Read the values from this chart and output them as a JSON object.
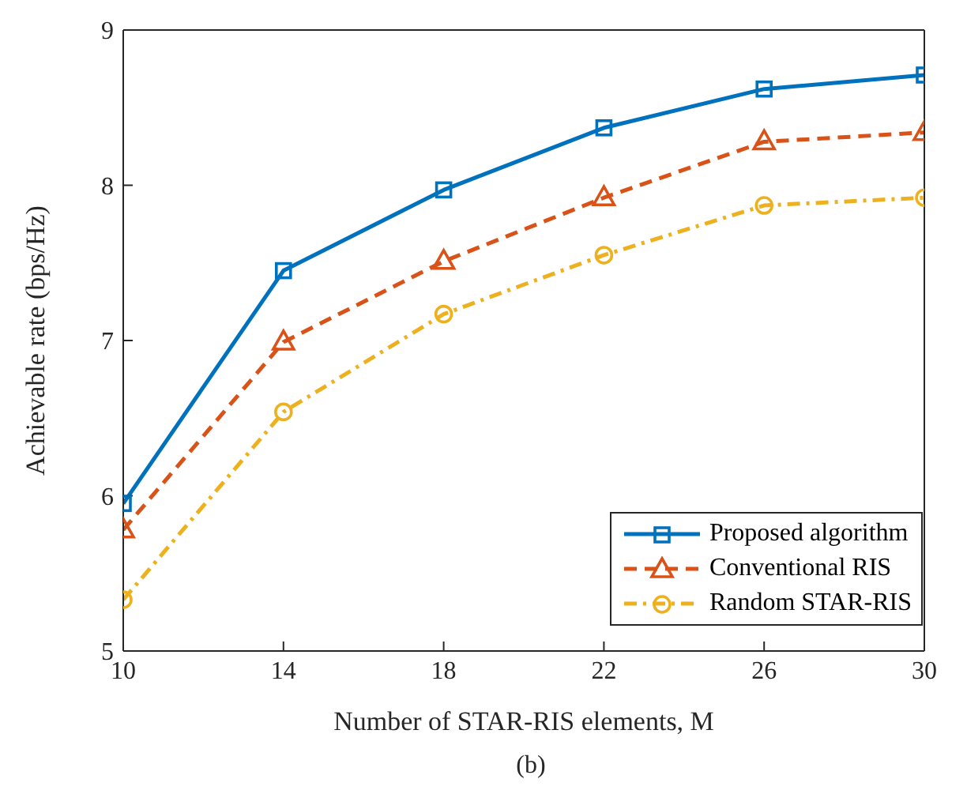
{
  "chart_data": {
    "type": "line",
    "xlabel": "Number of STAR-RIS elements, M",
    "ylabel": "Achievable rate (bps/Hz)",
    "annotations": [
      "(b)"
    ],
    "x": [
      10,
      14,
      18,
      22,
      26,
      30
    ],
    "xlim": [
      10,
      30
    ],
    "xticks": [
      10,
      14,
      18,
      22,
      26,
      30
    ],
    "ylim": [
      5,
      9
    ],
    "yticks": [
      5,
      6,
      7,
      8,
      9
    ],
    "grid": false,
    "legend": "bottom right",
    "series": [
      {
        "name": "Proposed algorithm",
        "color": "#0072bd",
        "marker": "square",
        "line_style": "solid",
        "values": [
          5.95,
          7.45,
          7.97,
          8.37,
          8.62,
          8.71
        ]
      },
      {
        "name": "Conventional RIS",
        "color": "#d95319",
        "marker": "triangle",
        "line_style": "dashed",
        "values": [
          5.78,
          6.99,
          7.51,
          7.92,
          8.28,
          8.34
        ]
      },
      {
        "name": "Random STAR-RIS",
        "color": "#edb120",
        "marker": "circle",
        "line_style": "dashdot",
        "values": [
          5.33,
          6.54,
          7.17,
          7.55,
          7.87,
          7.92
        ]
      }
    ]
  }
}
